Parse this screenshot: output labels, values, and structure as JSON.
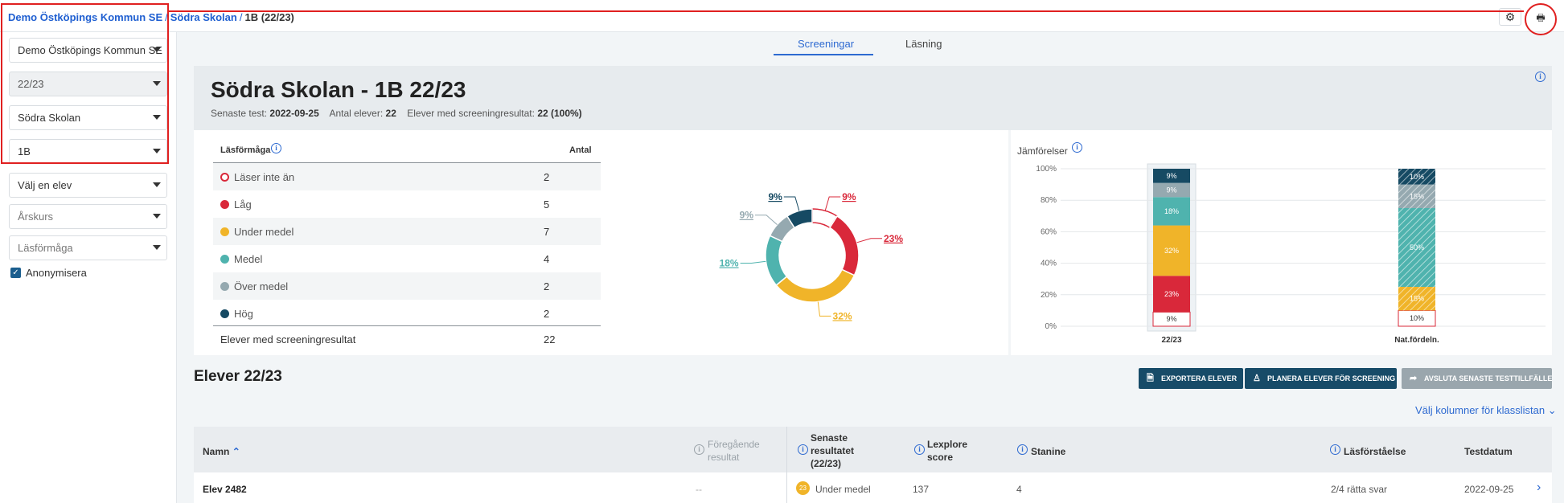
{
  "breadcrumb": {
    "org": "Demo Östköpings Kommun SE",
    "school": "Södra Skolan",
    "current": "1B (22/23)"
  },
  "header": {
    "gear_icon": "gear-icon",
    "print_icon": "print-icon"
  },
  "sidebar": {
    "org": "Demo Östköpings Kommun SE",
    "year": "22/23",
    "school": "Södra Skolan",
    "class": "1B",
    "student_placeholder": "Välj en elev",
    "grade_placeholder": "Årskurs",
    "ability_placeholder": "Läsförmåga",
    "anonymize": "Anonymisera"
  },
  "tabs": {
    "screening": "Screeningar",
    "reading": "Läsning"
  },
  "summary": {
    "title": "Södra Skolan - 1B 22/23",
    "latest_label": "Senaste test:",
    "latest": "2022-09-25",
    "count_label": "Antal elever:",
    "count": "22",
    "results_label": "Elever med screeningresultat:",
    "results": "22 (100%)"
  },
  "ability_table": {
    "header": "Läsförmåga",
    "count_header": "Antal",
    "rows": [
      {
        "label": "Läser inte än",
        "count": "2",
        "color": "#d9283a",
        "hollow": true
      },
      {
        "label": "Låg",
        "count": "5",
        "color": "#d9283a"
      },
      {
        "label": "Under medel",
        "count": "7",
        "color": "#f0b429"
      },
      {
        "label": "Medel",
        "count": "4",
        "color": "#4fb3ae"
      },
      {
        "label": "Över medel",
        "count": "2",
        "color": "#95a9b0"
      },
      {
        "label": "Hög",
        "count": "2",
        "color": "#164a63"
      }
    ],
    "total_label": "Elever med screeningresultat",
    "total": "22"
  },
  "comparison": {
    "title": "Jämförelser"
  },
  "chart_data": [
    {
      "type": "pie",
      "subtype": "donut",
      "labels": [
        "Läser inte än",
        "Låg",
        "Under medel",
        "Medel",
        "Över medel",
        "Hög"
      ],
      "values": [
        9,
        23,
        32,
        18,
        9,
        9
      ],
      "value_labels": [
        "9%",
        "23%",
        "32%",
        "18%",
        "9%",
        "9%"
      ],
      "colors": [
        "#ffffff",
        "#d9283a",
        "#f0b429",
        "#4fb3ae",
        "#95a9b0",
        "#164a63"
      ]
    },
    {
      "type": "bar",
      "stacked": true,
      "categories": [
        "22/23",
        "Nat.fördeln."
      ],
      "ylim": [
        0,
        100
      ],
      "yticks": [
        "0%",
        "20%",
        "40%",
        "60%",
        "80%",
        "100%"
      ],
      "series": [
        {
          "values": [
            9,
            10
          ],
          "labels": [
            "9%",
            "10%"
          ],
          "color": "#ffffff"
        },
        {
          "values": [
            23,
            0
          ],
          "labels": [
            "23%",
            ""
          ],
          "color": "#d9283a"
        },
        {
          "values": [
            32,
            15
          ],
          "labels": [
            "32%",
            "15%"
          ],
          "color": "#f0b429"
        },
        {
          "values": [
            18,
            50
          ],
          "labels": [
            "18%",
            "50%"
          ],
          "color": "#4fb3ae"
        },
        {
          "values": [
            9,
            15
          ],
          "labels": [
            "9%",
            "15%"
          ],
          "color": "#95a9b0"
        },
        {
          "values": [
            9,
            10
          ],
          "labels": [
            "9%",
            "10%"
          ],
          "color": "#164a63"
        }
      ]
    }
  ],
  "students": {
    "title": "Elever 22/23",
    "export": "EXPORTERA ELEVER",
    "plan": "PLANERA ELEVER FÖR SCREENING",
    "finish": "AVSLUTA SENASTE TESTTILLFÄLLE",
    "choose_columns": "Välj kolumner för klasslistan",
    "columns": {
      "name": "Namn",
      "prev": "Föregående resultat",
      "latest": "Senaste resultatet (22/23)",
      "lexplore": "Lexplore score",
      "stanine": "Stanine",
      "comprehension": "Läsförståelse",
      "date": "Testdatum"
    },
    "row": {
      "name": "Elev 2482",
      "prev": "--",
      "badge": "23",
      "latest": "Under medel",
      "lexplore": "137",
      "stanine": "4",
      "comprehension": "2/4 rätta svar",
      "date": "2022-09-25"
    }
  }
}
